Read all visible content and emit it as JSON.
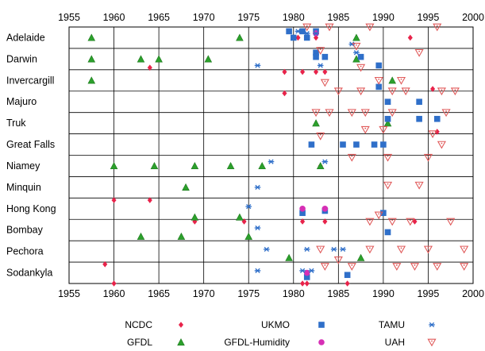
{
  "chart_data": {
    "type": "scatter",
    "title": "",
    "xlabel": "",
    "ylabel": "",
    "xlim": [
      1955,
      2000
    ],
    "x_ticks": [
      1955,
      1960,
      1965,
      1970,
      1975,
      1980,
      1985,
      1990,
      1995,
      2000
    ],
    "grid": true,
    "legend_placement": "bottom",
    "categories": [
      "Adelaide",
      "Darwin",
      "Invercargill",
      "Majuro",
      "Truk",
      "Great Falls",
      "Niamey",
      "Minquin",
      "Hong Kong",
      "Bombay",
      "Pechora",
      "Sodankyla"
    ],
    "series": [
      {
        "name": "NCDC",
        "marker": "diamond",
        "color": "#e8234a",
        "points": [
          {
            "station": "Adelaide",
            "row_offset": 0.5,
            "x": 1980.5
          },
          {
            "station": "Adelaide",
            "row_offset": 0.5,
            "x": 1982.5
          },
          {
            "station": "Adelaide",
            "row_offset": 0.5,
            "x": 1993.0
          },
          {
            "station": "Darwin",
            "row_offset": 0.9,
            "x": 1964.0
          },
          {
            "station": "Invercargill",
            "row_offset": 0.1,
            "x": 1979.0
          },
          {
            "station": "Invercargill",
            "row_offset": 0.1,
            "x": 1981.0
          },
          {
            "station": "Invercargill",
            "row_offset": 0.1,
            "x": 1982.5
          },
          {
            "station": "Invercargill",
            "row_offset": 0.1,
            "x": 1983.5
          },
          {
            "station": "Invercargill",
            "row_offset": 0.9,
            "x": 1995.5
          },
          {
            "station": "Majuro",
            "row_offset": 0.1,
            "x": 1979.0
          },
          {
            "station": "Truk",
            "row_offset": 0.9,
            "x": 1996.0
          },
          {
            "station": "Niamey",
            "row_offset": 0.5,
            "x": 1983.0
          },
          {
            "station": "Hong Kong",
            "row_offset": 0.1,
            "x": 1960.0
          },
          {
            "station": "Hong Kong",
            "row_offset": 0.1,
            "x": 1964.0
          },
          {
            "station": "Bombay",
            "row_offset": 0.1,
            "x": 1969.0
          },
          {
            "station": "Bombay",
            "row_offset": 0.1,
            "x": 1974.5
          },
          {
            "station": "Bombay",
            "row_offset": 0.1,
            "x": 1981.0
          },
          {
            "station": "Bombay",
            "row_offset": 0.1,
            "x": 1983.5
          },
          {
            "station": "Bombay",
            "row_offset": 0.1,
            "x": 1993.5
          },
          {
            "station": "Sodankyla",
            "row_offset": 0.1,
            "x": 1959.0
          },
          {
            "station": "Sodankyla",
            "row_offset": 1.0,
            "x": 1960.0
          },
          {
            "station": "Sodankyla",
            "row_offset": 1.0,
            "x": 1981.0
          },
          {
            "station": "Sodankyla",
            "row_offset": 1.0,
            "x": 1981.5
          },
          {
            "station": "Sodankyla",
            "row_offset": 1.0,
            "x": 1986.0
          }
        ]
      },
      {
        "name": "GFDL",
        "marker": "triangle",
        "color": "#2ca02c",
        "points": [
          {
            "station": "Adelaide",
            "row_offset": 0.5,
            "x": 1957.5
          },
          {
            "station": "Adelaide",
            "row_offset": 0.5,
            "x": 1974.0
          },
          {
            "station": "Adelaide",
            "row_offset": 0.5,
            "x": 1987.0
          },
          {
            "station": "Darwin",
            "row_offset": 0.5,
            "x": 1957.5
          },
          {
            "station": "Darwin",
            "row_offset": 0.5,
            "x": 1963.0
          },
          {
            "station": "Darwin",
            "row_offset": 0.5,
            "x": 1965.0
          },
          {
            "station": "Darwin",
            "row_offset": 0.5,
            "x": 1970.5
          },
          {
            "station": "Darwin",
            "row_offset": 0.5,
            "x": 1987.0
          },
          {
            "station": "Invercargill",
            "row_offset": 0.5,
            "x": 1957.5
          },
          {
            "station": "Invercargill",
            "row_offset": 0.5,
            "x": 1991.0
          },
          {
            "station": "Truk",
            "row_offset": 0.5,
            "x": 1982.5
          },
          {
            "station": "Truk",
            "row_offset": 0.5,
            "x": 1990.5
          },
          {
            "station": "Niamey",
            "row_offset": 0.5,
            "x": 1960.0
          },
          {
            "station": "Niamey",
            "row_offset": 0.5,
            "x": 1964.5
          },
          {
            "station": "Niamey",
            "row_offset": 0.5,
            "x": 1969.0
          },
          {
            "station": "Niamey",
            "row_offset": 0.5,
            "x": 1973.0
          },
          {
            "station": "Niamey",
            "row_offset": 0.5,
            "x": 1976.5
          },
          {
            "station": "Niamey",
            "row_offset": 0.5,
            "x": 1983.0
          },
          {
            "station": "Minquin",
            "row_offset": 0.5,
            "x": 1968.0
          },
          {
            "station": "Hong Kong",
            "row_offset": 0.9,
            "x": 1969.0
          },
          {
            "station": "Hong Kong",
            "row_offset": 0.9,
            "x": 1974.0
          },
          {
            "station": "Bombay",
            "row_offset": 0.8,
            "x": 1963.0
          },
          {
            "station": "Bombay",
            "row_offset": 0.8,
            "x": 1967.5
          },
          {
            "station": "Bombay",
            "row_offset": 0.8,
            "x": 1975.0
          },
          {
            "station": "Pechora",
            "row_offset": 0.8,
            "x": 1979.5
          },
          {
            "station": "Pechora",
            "row_offset": 0.8,
            "x": 1987.5
          }
        ]
      },
      {
        "name": "UKMO",
        "marker": "square",
        "color": "#2f6fc9",
        "points": [
          {
            "station": "Adelaide",
            "row_offset": 0.2,
            "x": 1979.5
          },
          {
            "station": "Adelaide",
            "row_offset": 0.2,
            "x": 1981.0
          },
          {
            "station": "Adelaide",
            "row_offset": 0.2,
            "x": 1982.5
          },
          {
            "station": "Adelaide",
            "row_offset": 0.5,
            "x": 1980.0
          },
          {
            "station": "Adelaide",
            "row_offset": 0.5,
            "x": 1981.5
          },
          {
            "station": "Darwin",
            "row_offset": 0.2,
            "x": 1982.5
          },
          {
            "station": "Darwin",
            "row_offset": 0.4,
            "x": 1982.5
          },
          {
            "station": "Darwin",
            "row_offset": 0.4,
            "x": 1983.5
          },
          {
            "station": "Darwin",
            "row_offset": 0.4,
            "x": 1987.5
          },
          {
            "station": "Darwin",
            "row_offset": 0.8,
            "x": 1989.5
          },
          {
            "station": "Invercargill",
            "row_offset": 0.8,
            "x": 1989.5
          },
          {
            "station": "Majuro",
            "row_offset": 0.5,
            "x": 1990.5
          },
          {
            "station": "Majuro",
            "row_offset": 0.5,
            "x": 1994.0
          },
          {
            "station": "Truk",
            "row_offset": 0.3,
            "x": 1990.5
          },
          {
            "station": "Truk",
            "row_offset": 0.3,
            "x": 1994.0
          },
          {
            "station": "Truk",
            "row_offset": 0.3,
            "x": 1996.0
          },
          {
            "station": "Great Falls",
            "row_offset": 0.5,
            "x": 1982.0
          },
          {
            "station": "Great Falls",
            "row_offset": 0.5,
            "x": 1985.5
          },
          {
            "station": "Great Falls",
            "row_offset": 0.5,
            "x": 1987.0
          },
          {
            "station": "Great Falls",
            "row_offset": 0.5,
            "x": 1989.0
          },
          {
            "station": "Great Falls",
            "row_offset": 0.5,
            "x": 1990.0
          },
          {
            "station": "Hong Kong",
            "row_offset": 0.7,
            "x": 1981.0
          },
          {
            "station": "Hong Kong",
            "row_offset": 0.6,
            "x": 1983.5
          },
          {
            "station": "Hong Kong",
            "row_offset": 0.7,
            "x": 1990.0
          },
          {
            "station": "Bombay",
            "row_offset": 0.6,
            "x": 1990.5
          },
          {
            "station": "Sodankyla",
            "row_offset": 0.7,
            "x": 1981.5
          },
          {
            "station": "Sodankyla",
            "row_offset": 0.6,
            "x": 1986.0
          }
        ]
      },
      {
        "name": "GFDL-Humidity",
        "marker": "circle",
        "color": "#d62fb5",
        "points": [
          {
            "station": "Adelaide",
            "row_offset": 0.3,
            "x": 1982.5
          },
          {
            "station": "Hong Kong",
            "row_offset": 0.5,
            "x": 1981.0
          },
          {
            "station": "Hong Kong",
            "row_offset": 0.5,
            "x": 1983.5
          },
          {
            "station": "Sodankyla",
            "row_offset": 0.5,
            "x": 1981.5
          }
        ]
      },
      {
        "name": "TAMU",
        "marker": "asterisk",
        "color": "#2f6fc9",
        "points": [
          {
            "station": "Adelaide",
            "row_offset": 0.2,
            "x": 1980.5
          },
          {
            "station": "Adelaide",
            "row_offset": 0.3,
            "x": 1981.5
          },
          {
            "station": "Adelaide",
            "row_offset": 0.3,
            "x": 1982.5
          },
          {
            "station": "Adelaide",
            "row_offset": 0.8,
            "x": 1986.5
          },
          {
            "station": "Darwin",
            "row_offset": 0.2,
            "x": 1987.0
          },
          {
            "station": "Darwin",
            "row_offset": 0.8,
            "x": 1976.0
          },
          {
            "station": "Darwin",
            "row_offset": 0.8,
            "x": 1983.0
          },
          {
            "station": "Niamey",
            "row_offset": 0.3,
            "x": 1977.5
          },
          {
            "station": "Niamey",
            "row_offset": 0.3,
            "x": 1983.5
          },
          {
            "station": "Minquin",
            "row_offset": 0.5,
            "x": 1976.0
          },
          {
            "station": "Hong Kong",
            "row_offset": 0.4,
            "x": 1975.0
          },
          {
            "station": "Bombay",
            "row_offset": 0.4,
            "x": 1976.0
          },
          {
            "station": "Pechora",
            "row_offset": 0.4,
            "x": 1977.0
          },
          {
            "station": "Pechora",
            "row_offset": 0.4,
            "x": 1981.5
          },
          {
            "station": "Pechora",
            "row_offset": 0.4,
            "x": 1984.5
          },
          {
            "station": "Pechora",
            "row_offset": 0.4,
            "x": 1985.5
          },
          {
            "station": "Sodankyla",
            "row_offset": 0.4,
            "x": 1976.0
          },
          {
            "station": "Sodankyla",
            "row_offset": 0.4,
            "x": 1981.0
          },
          {
            "station": "Sodankyla",
            "row_offset": 0.4,
            "x": 1982.0
          }
        ]
      },
      {
        "name": "UAH",
        "marker": "triangle-down",
        "color": "#e05a5a",
        "points": [
          {
            "station": "Adelaide",
            "row_offset": 0.0,
            "x": 1981.5
          },
          {
            "station": "Adelaide",
            "row_offset": 0.0,
            "x": 1984.0
          },
          {
            "station": "Adelaide",
            "row_offset": 0.0,
            "x": 1988.5
          },
          {
            "station": "Adelaide",
            "row_offset": 0.0,
            "x": 1996.0
          },
          {
            "station": "Adelaide",
            "row_offset": 0.9,
            "x": 1987.0
          },
          {
            "station": "Darwin",
            "row_offset": 0.1,
            "x": 1983.0
          },
          {
            "station": "Darwin",
            "row_offset": 0.2,
            "x": 1994.0
          },
          {
            "station": "Darwin",
            "row_offset": 0.9,
            "x": 1987.5
          },
          {
            "station": "Invercargill",
            "row_offset": 0.6,
            "x": 1983.5
          },
          {
            "station": "Invercargill",
            "row_offset": 0.5,
            "x": 1989.5
          },
          {
            "station": "Invercargill",
            "row_offset": 0.5,
            "x": 1992.0
          },
          {
            "station": "Majuro",
            "row_offset": 0.0,
            "x": 1985.0
          },
          {
            "station": "Majuro",
            "row_offset": 0.0,
            "x": 1987.5
          },
          {
            "station": "Majuro",
            "row_offset": 0.0,
            "x": 1991.0
          },
          {
            "station": "Majuro",
            "row_offset": 0.0,
            "x": 1992.5
          },
          {
            "station": "Majuro",
            "row_offset": 0.0,
            "x": 1996.5
          },
          {
            "station": "Majuro",
            "row_offset": 0.0,
            "x": 1998.0
          },
          {
            "station": "Truk",
            "row_offset": 0.0,
            "x": 1982.5
          },
          {
            "station": "Truk",
            "row_offset": 0.0,
            "x": 1984.0
          },
          {
            "station": "Truk",
            "row_offset": 0.0,
            "x": 1986.5
          },
          {
            "station": "Truk",
            "row_offset": 0.0,
            "x": 1988.0
          },
          {
            "station": "Truk",
            "row_offset": 0.0,
            "x": 1991.0
          },
          {
            "station": "Truk",
            "row_offset": 0.0,
            "x": 1997.0
          },
          {
            "station": "Truk",
            "row_offset": 0.8,
            "x": 1988.0
          },
          {
            "station": "Truk",
            "row_offset": 0.8,
            "x": 1990.0
          },
          {
            "station": "Great Falls",
            "row_offset": 0.1,
            "x": 1983.0
          },
          {
            "station": "Great Falls",
            "row_offset": 0.0,
            "x": 1995.5
          },
          {
            "station": "Great Falls",
            "row_offset": 0.5,
            "x": 1996.5
          },
          {
            "station": "Niamey",
            "row_offset": 0.1,
            "x": 1986.5
          },
          {
            "station": "Niamey",
            "row_offset": 0.1,
            "x": 1990.5
          },
          {
            "station": "Niamey",
            "row_offset": 0.1,
            "x": 1995.0
          },
          {
            "station": "Minquin",
            "row_offset": 0.4,
            "x": 1990.5
          },
          {
            "station": "Minquin",
            "row_offset": 0.4,
            "x": 1994.0
          },
          {
            "station": "Hong Kong",
            "row_offset": 0.8,
            "x": 1989.5
          },
          {
            "station": "Bombay",
            "row_offset": 0.1,
            "x": 1988.5
          },
          {
            "station": "Bombay",
            "row_offset": 0.1,
            "x": 1991.0
          },
          {
            "station": "Bombay",
            "row_offset": 0.1,
            "x": 1993.0
          },
          {
            "station": "Bombay",
            "row_offset": 0.1,
            "x": 1997.5
          },
          {
            "station": "Pechora",
            "row_offset": 0.4,
            "x": 1983.0
          },
          {
            "station": "Pechora",
            "row_offset": 0.4,
            "x": 1988.5
          },
          {
            "station": "Pechora",
            "row_offset": 0.4,
            "x": 1992.0
          },
          {
            "station": "Pechora",
            "row_offset": 0.4,
            "x": 1995.0
          },
          {
            "station": "Pechora",
            "row_offset": 0.4,
            "x": 1999.0
          },
          {
            "station": "Pechora",
            "row_offset": 0.9,
            "x": 1985.0
          },
          {
            "station": "Sodankyla",
            "row_offset": 0.2,
            "x": 1983.5
          },
          {
            "station": "Sodankyla",
            "row_offset": 0.2,
            "x": 1986.5
          },
          {
            "station": "Sodankyla",
            "row_offset": 0.2,
            "x": 1991.5
          },
          {
            "station": "Sodankyla",
            "row_offset": 0.2,
            "x": 1993.5
          },
          {
            "station": "Sodankyla",
            "row_offset": 0.2,
            "x": 1996.0
          },
          {
            "station": "Sodankyla",
            "row_offset": 0.2,
            "x": 1999.0
          }
        ]
      }
    ],
    "legend": [
      {
        "label": "NCDC",
        "marker": "diamond",
        "color": "#e8234a"
      },
      {
        "label": "UKMO",
        "marker": "square",
        "color": "#2f6fc9"
      },
      {
        "label": "TAMU",
        "marker": "asterisk",
        "color": "#2f6fc9"
      },
      {
        "label": "GFDL",
        "marker": "triangle",
        "color": "#2ca02c"
      },
      {
        "label": "GFDL-Humidity",
        "marker": "circle",
        "color": "#d62fb5"
      },
      {
        "label": "UAH",
        "marker": "triangle-down",
        "color": "#e05a5a"
      }
    ]
  }
}
